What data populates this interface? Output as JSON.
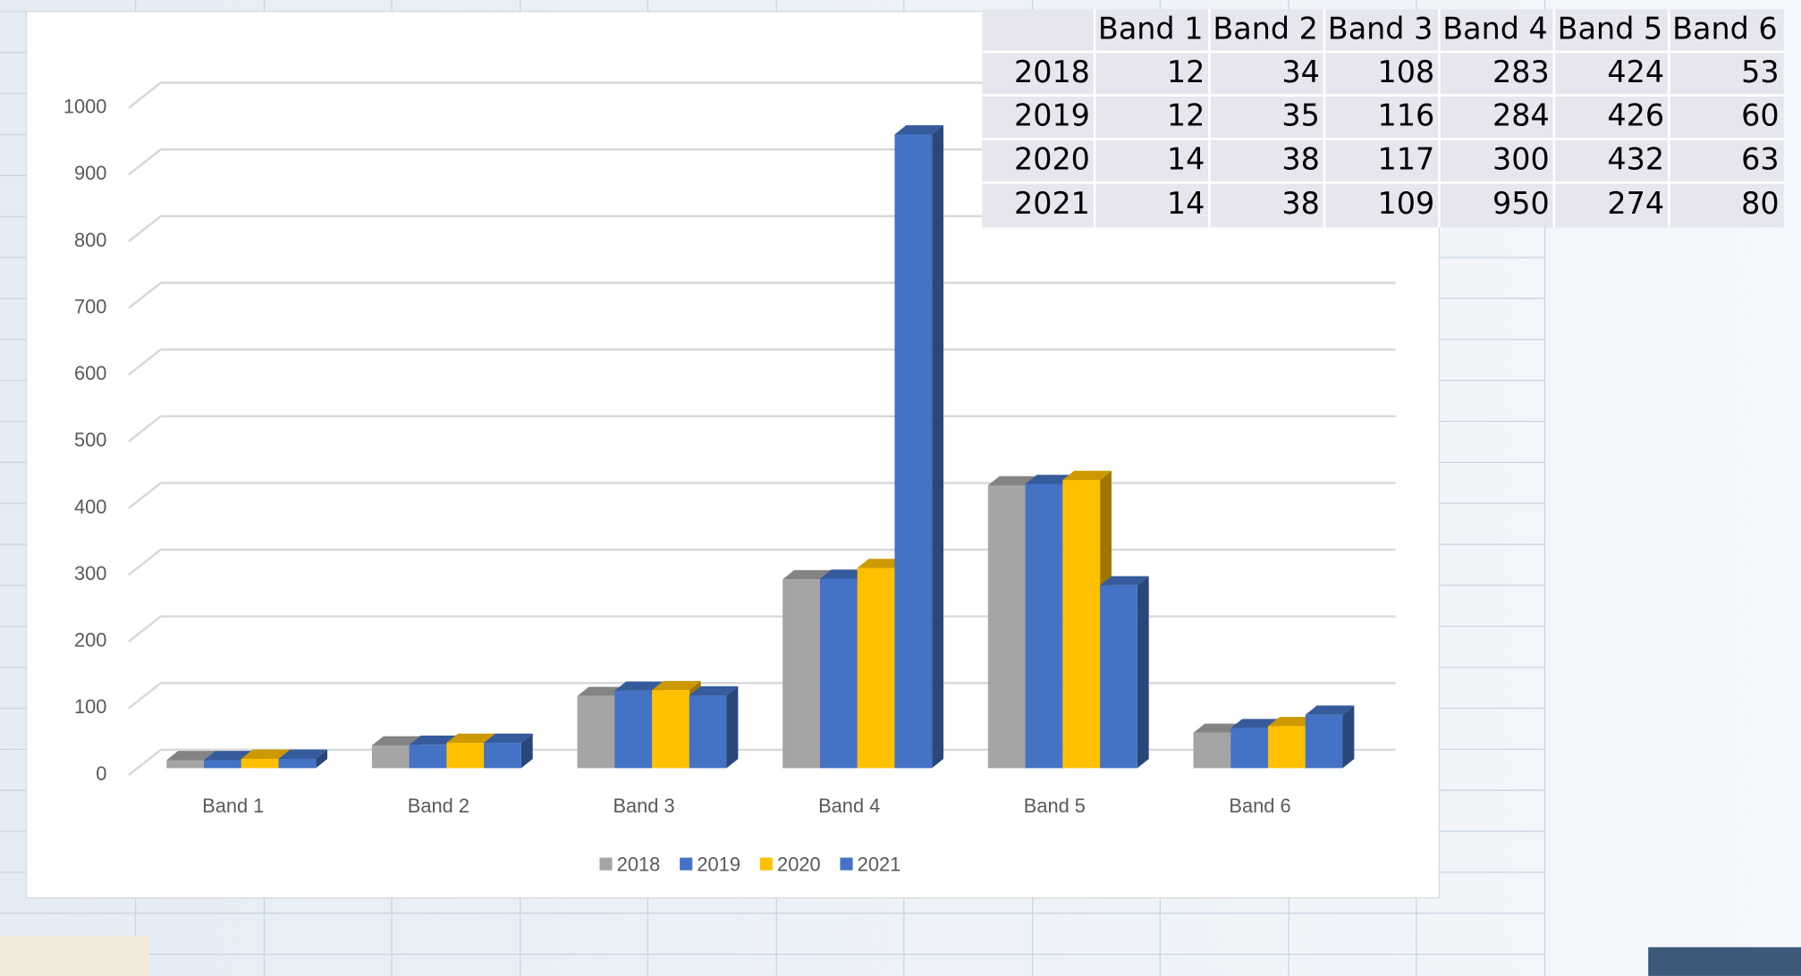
{
  "chart_data": {
    "type": "bar3d",
    "categories": [
      "Band 1",
      "Band 2",
      "Band 3",
      "Band 4",
      "Band 5",
      "Band 6"
    ],
    "series": [
      {
        "name": "2018",
        "color": "#a5a5a5",
        "values": [
          12,
          34,
          108,
          283,
          424,
          53
        ]
      },
      {
        "name": "2019",
        "color": "#4472c4",
        "values": [
          12,
          35,
          116,
          284,
          426,
          60
        ]
      },
      {
        "name": "2020",
        "color": "#ffc000",
        "values": [
          14,
          38,
          117,
          300,
          432,
          63
        ]
      },
      {
        "name": "2021",
        "color": "#4472c4",
        "values": [
          14,
          38,
          109,
          950,
          274,
          80
        ]
      }
    ],
    "ylim": [
      0,
      1000
    ],
    "yticks": [
      0,
      100,
      200,
      300,
      400,
      500,
      600,
      700,
      800,
      900,
      1000
    ],
    "grid": true,
    "legend": "bottom"
  }
}
